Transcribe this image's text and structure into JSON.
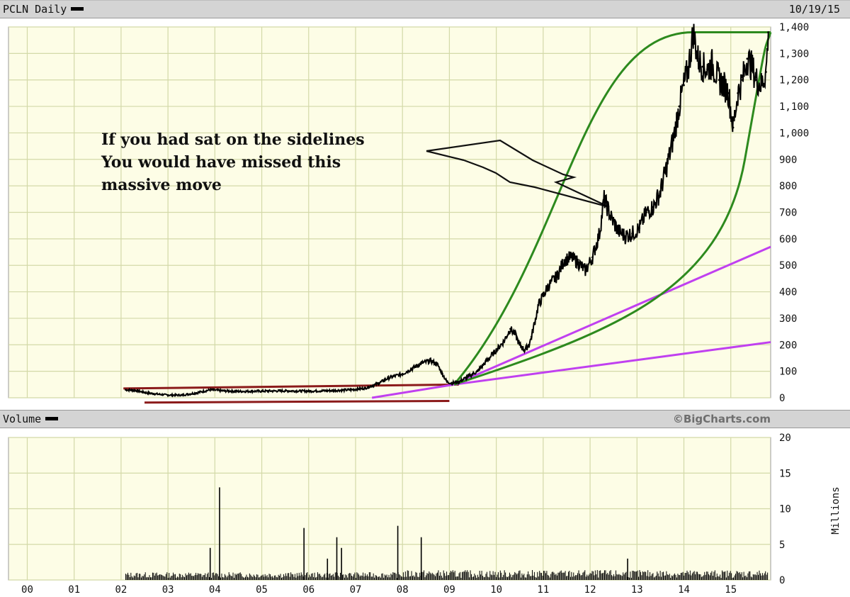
{
  "header": {
    "symbol_label": "PCLN Daily",
    "date": "10/19/15",
    "volume_label": "Volume",
    "credit": "©BigCharts.com"
  },
  "annotation": {
    "lines": [
      "If you had sat on the sidelines",
      "You would have missed this",
      "massive move"
    ]
  },
  "colors": {
    "plot_bg": "#fdfde6",
    "grid": "#d3d9a8",
    "price": "#000000",
    "support": "#8b1a1a",
    "curve": "#2d8a1e",
    "trendline": "#c040f0",
    "volume": "#000000"
  },
  "chart_data": [
    {
      "type": "line",
      "series_id": "price",
      "ylim": [
        0,
        1400
      ],
      "xlim": [
        1999.6,
        2015.85
      ],
      "grid": true,
      "x_tick_labels": [
        "00",
        "01",
        "02",
        "03",
        "04",
        "05",
        "06",
        "07",
        "08",
        "09",
        "10",
        "11",
        "12",
        "13",
        "14",
        "15"
      ],
      "y_tick_labels": [
        "1,400",
        "1,300",
        "1,200",
        "1,100",
        "1,000",
        "900",
        "800",
        "700",
        "600",
        "500",
        "400",
        "300",
        "200",
        "100",
        "0"
      ],
      "series": [
        {
          "x": [
            2002.1,
            2002.3,
            2002.5,
            2002.7,
            2003.0,
            2003.3,
            2003.6,
            2003.9,
            2004.2,
            2004.5,
            2005.0,
            2005.5,
            2006.0,
            2006.5,
            2006.9,
            2007.2,
            2007.5,
            2007.7,
            2008.0,
            2008.2,
            2008.4,
            2008.6,
            2008.75,
            2008.85,
            2008.95,
            2009.05,
            2009.2,
            2009.4,
            2009.6,
            2009.8,
            2010.0,
            2010.15,
            2010.3,
            2010.4,
            2010.5,
            2010.6,
            2010.7,
            2010.75,
            2010.9,
            2011.1,
            2011.3,
            2011.45,
            2011.6,
            2011.75,
            2011.9,
            2012.05,
            2012.2,
            2012.3,
            2012.45,
            2012.6,
            2012.75,
            2012.9,
            2013.05,
            2013.2,
            2013.35,
            2013.5,
            2013.6,
            2013.7,
            2013.8,
            2013.9,
            2014.0,
            2014.1,
            2014.2,
            2014.3,
            2014.4,
            2014.5,
            2014.6,
            2014.75,
            2014.85,
            2014.95,
            2015.05,
            2015.15,
            2015.25,
            2015.35,
            2015.45,
            2015.55,
            2015.65,
            2015.75,
            2015.8
          ],
          "values": [
            30,
            28,
            20,
            15,
            10,
            10,
            18,
            30,
            26,
            24,
            25,
            26,
            25,
            27,
            30,
            36,
            55,
            75,
            90,
            110,
            130,
            140,
            125,
            90,
            60,
            55,
            60,
            80,
            100,
            140,
            180,
            210,
            260,
            240,
            200,
            180,
            200,
            230,
            350,
            420,
            460,
            520,
            530,
            510,
            480,
            530,
            620,
            750,
            680,
            630,
            610,
            620,
            640,
            700,
            720,
            780,
            850,
            920,
            1000,
            1100,
            1180,
            1250,
            1380,
            1280,
            1250,
            1240,
            1260,
            1200,
            1180,
            1150,
            1020,
            1150,
            1200,
            1280,
            1250,
            1200,
            1180,
            1230,
            1380
          ]
        }
      ]
    },
    {
      "type": "bar",
      "series_id": "volume",
      "ylabel": "Millions",
      "ylim": [
        0,
        20
      ],
      "y_tick_labels": [
        "20",
        "15",
        "10",
        "5",
        "0"
      ],
      "spikes": {
        "x": [
          2003.9,
          2004.1,
          2005.9,
          2006.4,
          2006.6,
          2006.7,
          2007.9,
          2008.4,
          2012.8
        ],
        "values": [
          4.5,
          13,
          7.3,
          3,
          6,
          4.5,
          7.6,
          6,
          3
        ]
      }
    }
  ]
}
